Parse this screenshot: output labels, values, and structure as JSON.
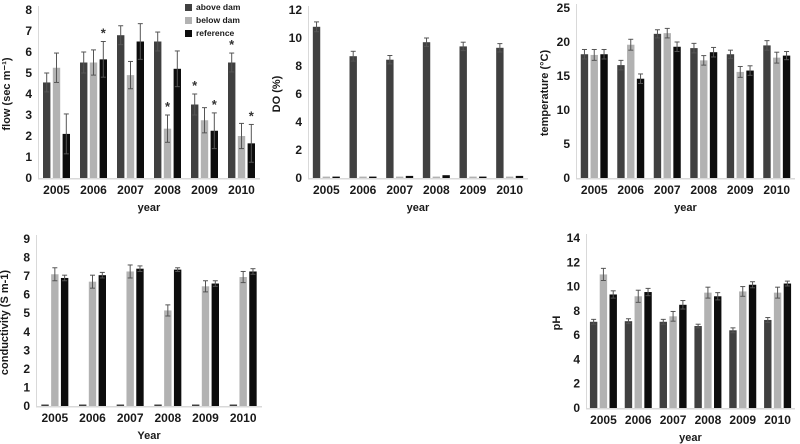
{
  "page": {
    "background": "#ffffff"
  },
  "colors": {
    "above_dam": "#404040",
    "below_dam": "#b2b2b2",
    "reference": "#0d0d0d",
    "axis_line": "#d9d9d9",
    "error_bar": "#555555",
    "text": "#1a1a1a"
  },
  "legend": {
    "items": [
      {
        "label": "above dam",
        "color_key": "above_dam"
      },
      {
        "label": "below dam",
        "color_key": "below_dam"
      },
      {
        "label": "reference",
        "color_key": "reference"
      }
    ]
  },
  "chart_data": [
    {
      "id": "flow",
      "type": "bar",
      "title": "",
      "ylabel": "flow (sec m⁻¹)",
      "xlabel": "year",
      "ylim": [
        0,
        8
      ],
      "ytick_step": 1,
      "grid": false,
      "legend_position": "top-right",
      "legend_visible": true,
      "categories": [
        "2005",
        "2006",
        "2007",
        "2008",
        "2009",
        "2010"
      ],
      "series": [
        {
          "name": "above dam",
          "color_key": "above_dam",
          "values": [
            4.55,
            5.5,
            6.8,
            6.5,
            3.5,
            5.5
          ],
          "errors": [
            0.45,
            0.5,
            0.45,
            0.45,
            0.5,
            0.45
          ],
          "stars": [
            false,
            false,
            false,
            false,
            true,
            true
          ]
        },
        {
          "name": "below dam",
          "color_key": "below_dam",
          "values": [
            5.25,
            5.5,
            4.9,
            2.35,
            2.75,
            2.0
          ],
          "errors": [
            0.7,
            0.6,
            0.65,
            0.65,
            0.6,
            0.6
          ],
          "stars": [
            false,
            false,
            false,
            true,
            false,
            false
          ]
        },
        {
          "name": "reference",
          "color_key": "reference",
          "values": [
            2.1,
            5.65,
            6.5,
            5.2,
            2.25,
            1.65
          ],
          "errors": [
            0.95,
            0.85,
            0.85,
            0.85,
            0.85,
            0.9
          ],
          "stars": [
            false,
            true,
            false,
            false,
            true,
            true
          ]
        }
      ]
    },
    {
      "id": "do",
      "type": "bar",
      "title": "",
      "ylabel": "DO (%)",
      "xlabel": "year",
      "ylim": [
        0,
        12
      ],
      "ytick_step": 2,
      "grid": false,
      "legend_visible": false,
      "categories": [
        "2005",
        "2006",
        "2007",
        "2008",
        "2009",
        "2010"
      ],
      "series": [
        {
          "name": "above dam",
          "color_key": "above_dam",
          "values": [
            10.8,
            8.7,
            8.45,
            9.7,
            9.4,
            9.3
          ],
          "errors": [
            0.35,
            0.35,
            0.3,
            0.3,
            0.3,
            0.3
          ]
        },
        {
          "name": "below dam",
          "color_key": "below_dam",
          "values": [
            0.1,
            0.1,
            0.1,
            0.1,
            0.1,
            0.1
          ],
          "errors": [
            0,
            0,
            0,
            0,
            0,
            0
          ]
        },
        {
          "name": "reference",
          "color_key": "reference",
          "values": [
            0.1,
            0.1,
            0.15,
            0.2,
            0.1,
            0.15
          ],
          "errors": [
            0,
            0,
            0,
            0,
            0,
            0
          ]
        }
      ]
    },
    {
      "id": "temp",
      "type": "bar",
      "title": "",
      "ylabel": "temperature (°C)",
      "xlabel": "year",
      "ylim": [
        0,
        25
      ],
      "ytick_step": 5,
      "grid": false,
      "legend_visible": false,
      "categories": [
        "2005",
        "2006",
        "2007",
        "2008",
        "2009",
        "2010"
      ],
      "series": [
        {
          "name": "above dam",
          "color_key": "above_dam",
          "values": [
            18.2,
            16.6,
            21.2,
            19.1,
            18.2,
            19.5
          ],
          "errors": [
            0.7,
            0.7,
            0.6,
            0.7,
            0.6,
            0.7
          ]
        },
        {
          "name": "below dam",
          "color_key": "below_dam",
          "values": [
            18.1,
            19.6,
            21.3,
            17.3,
            15.6,
            17.7
          ],
          "errors": [
            0.8,
            0.8,
            0.7,
            0.7,
            0.8,
            0.8
          ]
        },
        {
          "name": "reference",
          "color_key": "reference",
          "values": [
            18.2,
            14.6,
            19.3,
            18.5,
            15.8,
            18.0
          ],
          "errors": [
            0.7,
            0.7,
            0.7,
            0.7,
            0.7,
            0.6
          ]
        }
      ]
    },
    {
      "id": "cond",
      "type": "bar",
      "title": "",
      "ylabel": "conductivity  (S m-1)",
      "xlabel": "Year",
      "ylim": [
        0,
        9
      ],
      "ytick_step": 1,
      "grid": false,
      "legend_visible": false,
      "categories": [
        "2005",
        "2006",
        "2007",
        "2008",
        "2009",
        "2010"
      ],
      "series": [
        {
          "name": "above dam",
          "color_key": "above_dam",
          "values": [
            0.08,
            0.08,
            0.08,
            0.08,
            0.08,
            0.08
          ],
          "errors": [
            0,
            0,
            0,
            0,
            0,
            0
          ]
        },
        {
          "name": "below dam",
          "color_key": "below_dam",
          "values": [
            7.1,
            6.7,
            7.25,
            5.15,
            6.45,
            6.95
          ],
          "errors": [
            0.35,
            0.35,
            0.35,
            0.3,
            0.3,
            0.3
          ]
        },
        {
          "name": "reference",
          "color_key": "reference",
          "values": [
            6.9,
            7.05,
            7.4,
            7.35,
            6.6,
            7.25
          ],
          "errors": [
            0.15,
            0.15,
            0.15,
            0.1,
            0.15,
            0.15
          ]
        }
      ]
    },
    {
      "id": "ph",
      "type": "bar",
      "title": "",
      "ylabel": "pH",
      "xlabel": "year",
      "ylim": [
        0,
        14
      ],
      "ytick_step": 2,
      "grid": false,
      "legend_visible": false,
      "categories": [
        "2005",
        "2006",
        "2007",
        "2008",
        "2009",
        "2010"
      ],
      "series": [
        {
          "name": "above dam",
          "color_key": "above_dam",
          "values": [
            7.1,
            7.15,
            7.1,
            6.75,
            6.4,
            7.25
          ],
          "errors": [
            0.2,
            0.2,
            0.2,
            0.15,
            0.2,
            0.2
          ]
        },
        {
          "name": "below dam",
          "color_key": "below_dam",
          "values": [
            11.0,
            9.2,
            7.55,
            9.5,
            9.6,
            9.5
          ],
          "errors": [
            0.5,
            0.5,
            0.4,
            0.45,
            0.4,
            0.45
          ]
        },
        {
          "name": "reference",
          "color_key": "reference",
          "values": [
            9.35,
            9.55,
            8.5,
            9.2,
            10.15,
            10.25
          ],
          "errors": [
            0.3,
            0.3,
            0.35,
            0.3,
            0.25,
            0.2
          ]
        }
      ]
    }
  ]
}
